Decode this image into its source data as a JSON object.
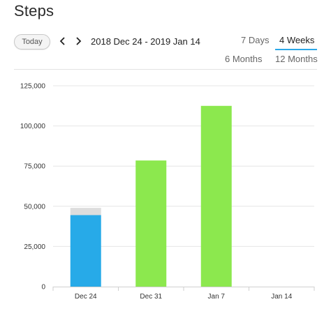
{
  "header": {
    "title": "Steps",
    "today_label": "Today",
    "date_range": "2018 Dec 24 - 2019 Jan 14",
    "prev_icon": "chevron-left-icon",
    "next_icon": "chevron-right-icon"
  },
  "range_tabs": [
    {
      "label": "7 Days",
      "selected": false
    },
    {
      "label": "4 Weeks",
      "selected": true
    },
    {
      "label": "6 Months",
      "selected": false
    },
    {
      "label": "12 Months",
      "selected": false
    }
  ],
  "colors": {
    "accent": "#2aa8e8",
    "current_bar": "#27aae8",
    "goal_met_bar": "#8ce84e",
    "remainder_bar": "#dddddd",
    "grid": "#e6e6e6"
  },
  "chart_data": {
    "type": "bar",
    "categories": [
      "Dec 24",
      "Dec 31",
      "Jan 7",
      "Jan 14"
    ],
    "values": [
      44500,
      78500,
      112500,
      0
    ],
    "stacked_remainder": [
      4500,
      0,
      0,
      0
    ],
    "ylim": [
      0,
      125000
    ],
    "yticks": [
      0,
      25000,
      50000,
      75000,
      100000,
      125000
    ],
    "ytick_labels": [
      "0",
      "25,000",
      "50,000",
      "75,000",
      "100,000",
      "125,000"
    ],
    "grid": true
  }
}
